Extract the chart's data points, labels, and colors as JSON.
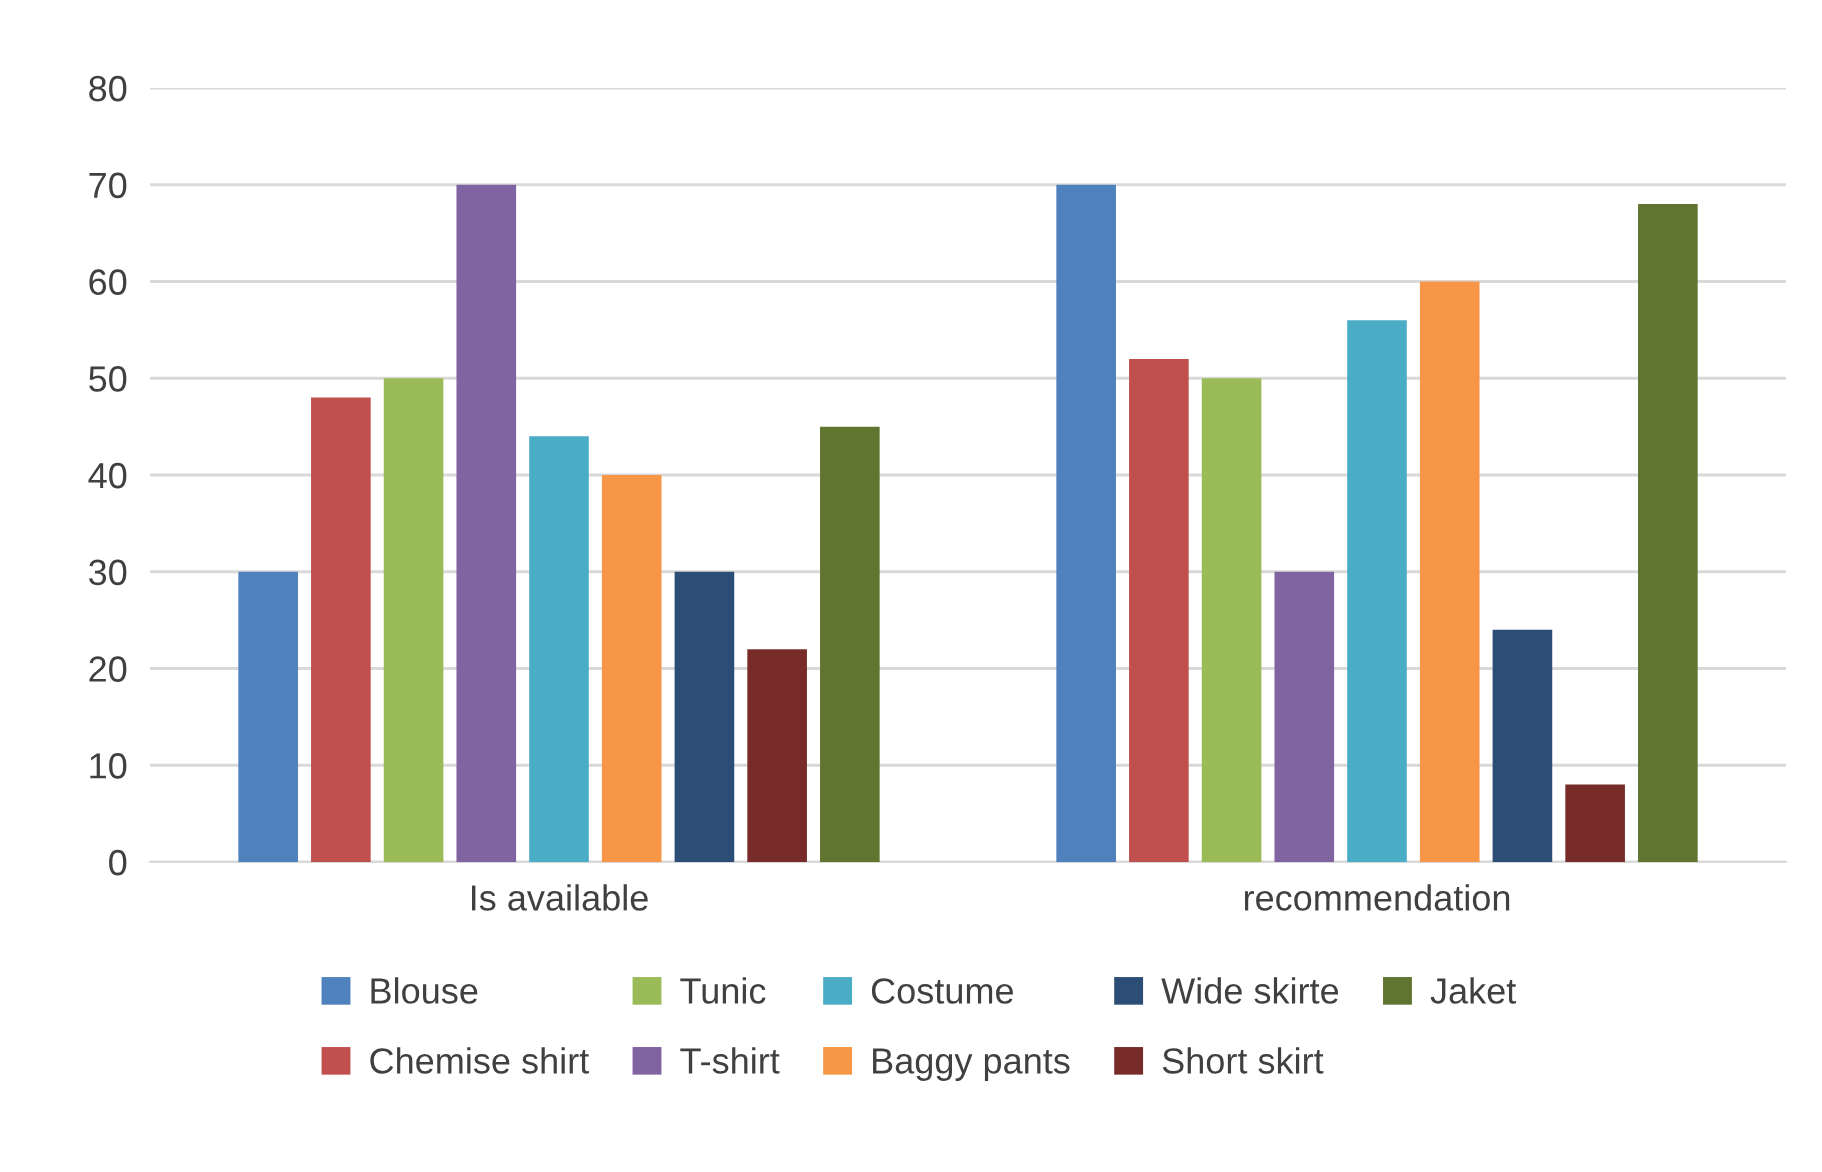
{
  "chart_data": {
    "type": "bar",
    "categories": [
      "Is available",
      "recommendation"
    ],
    "series": [
      {
        "name": "Blouse",
        "color": "#4f81bd",
        "values": [
          30,
          70
        ]
      },
      {
        "name": "Chemise shirt",
        "color": "#c0504d",
        "values": [
          48,
          52
        ]
      },
      {
        "name": "Tunic",
        "color": "#9bbb59",
        "values": [
          50,
          50
        ]
      },
      {
        "name": "T-shirt",
        "color": "#8064a2",
        "values": [
          70,
          30
        ]
      },
      {
        "name": "Costume",
        "color": "#4bacc6",
        "values": [
          44,
          56
        ]
      },
      {
        "name": "Baggy pants",
        "color": "#f79646",
        "values": [
          40,
          60
        ]
      },
      {
        "name": "Wide skirte",
        "color": "#2c4d75",
        "values": [
          30,
          24
        ]
      },
      {
        "name": "Short skirt",
        "color": "#772c2a",
        "values": [
          22,
          8
        ]
      },
      {
        "name": "Jaket",
        "color": "#5f7530",
        "values": [
          45,
          68
        ]
      }
    ],
    "ylim": [
      0,
      80
    ],
    "yticks": [
      0,
      10,
      20,
      30,
      40,
      50,
      60,
      70,
      80
    ],
    "grid": "y",
    "legend": "bottom"
  }
}
